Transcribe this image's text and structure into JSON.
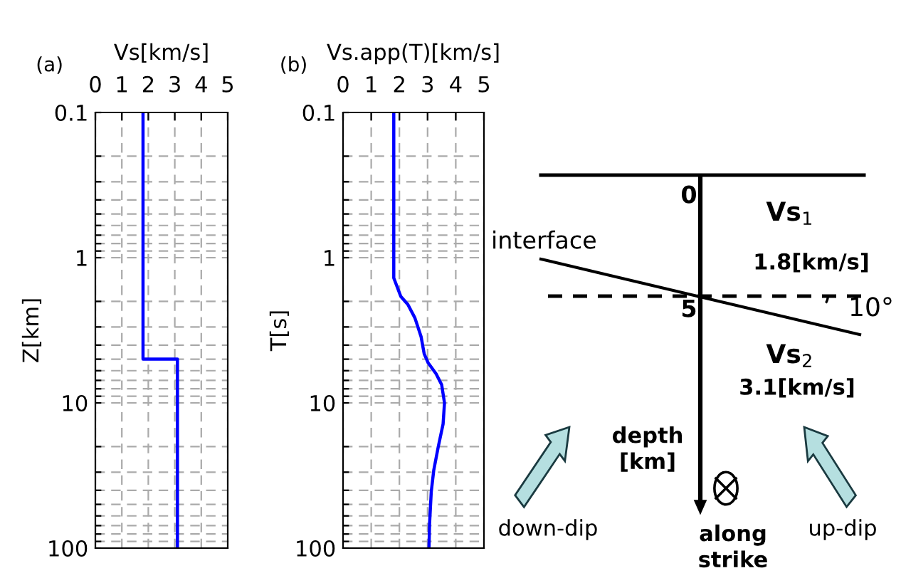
{
  "chart_data": [
    {
      "type": "line",
      "xlabel": "Vs[km/s]",
      "ylabel": "Z[km]",
      "annotations": [
        "(a)"
      ],
      "log": "y",
      "grid": true,
      "marker": "none",
      "line_style": "solid",
      "xlim": [
        0,
        5
      ],
      "xticks": [
        0,
        1,
        2,
        3,
        4,
        5
      ],
      "ylim": [
        100,
        0.1
      ],
      "yticks": [
        0.1,
        {
          "value": 0.2,
          "label": null
        },
        {
          "value": 0.3,
          "label": null
        },
        {
          "value": 0.4,
          "label": null
        },
        {
          "value": 0.5,
          "label": null
        },
        {
          "value": 0.6,
          "label": null
        },
        {
          "value": 0.7,
          "label": null
        },
        {
          "value": 0.8,
          "label": null
        },
        {
          "value": 0.9,
          "label": null
        },
        1,
        {
          "value": 2,
          "label": null
        },
        {
          "value": 3,
          "label": null
        },
        {
          "value": 4,
          "label": null
        },
        {
          "value": 5,
          "label": null
        },
        {
          "value": 6,
          "label": null
        },
        {
          "value": 7,
          "label": null
        },
        {
          "value": 8,
          "label": null
        },
        {
          "value": 9,
          "label": null
        },
        10,
        {
          "value": 20,
          "label": null
        },
        {
          "value": 30,
          "label": null
        },
        {
          "value": 40,
          "label": null
        },
        {
          "value": 50,
          "label": null
        },
        {
          "value": 60,
          "label": null
        },
        {
          "value": 70,
          "label": null
        },
        {
          "value": 80,
          "label": null
        },
        {
          "value": 90,
          "label": null
        },
        100
      ],
      "series": [
        {
          "color": "#0000ff",
          "x": [
            1.8,
            1.8,
            3.1,
            3.1
          ],
          "values": [
            0.1,
            5,
            5,
            100
          ]
        }
      ]
    },
    {
      "type": "line",
      "xlabel": "Vs.app(T)[km/s]",
      "ylabel": "T[s]",
      "annotations": [
        "(b)"
      ],
      "log": "y",
      "grid": true,
      "marker": "none",
      "line_style": "solid",
      "xlim": [
        0,
        5
      ],
      "xticks": [
        0,
        1,
        2,
        3,
        4,
        5
      ],
      "ylim": [
        100,
        0.1
      ],
      "yticks": [
        0.1,
        {
          "value": 0.2,
          "label": null
        },
        {
          "value": 0.3,
          "label": null
        },
        {
          "value": 0.4,
          "label": null
        },
        {
          "value": 0.5,
          "label": null
        },
        {
          "value": 0.6,
          "label": null
        },
        {
          "value": 0.7,
          "label": null
        },
        {
          "value": 0.8,
          "label": null
        },
        {
          "value": 0.9,
          "label": null
        },
        1,
        {
          "value": 2,
          "label": null
        },
        {
          "value": 3,
          "label": null
        },
        {
          "value": 4,
          "label": null
        },
        {
          "value": 5,
          "label": null
        },
        {
          "value": 6,
          "label": null
        },
        {
          "value": 7,
          "label": null
        },
        {
          "value": 8,
          "label": null
        },
        {
          "value": 9,
          "label": null
        },
        10,
        {
          "value": 20,
          "label": null
        },
        {
          "value": 30,
          "label": null
        },
        {
          "value": 40,
          "label": null
        },
        {
          "value": 50,
          "label": null
        },
        {
          "value": 60,
          "label": null
        },
        {
          "value": 70,
          "label": null
        },
        {
          "value": 80,
          "label": null
        },
        {
          "value": 90,
          "label": null
        },
        100
      ],
      "series": [
        {
          "color": "#0000ff",
          "x": [
            1.8,
            1.8,
            1.8,
            2.05,
            2.3,
            2.55,
            2.77,
            2.88,
            3.02,
            3.3,
            3.5,
            3.6,
            3.55,
            3.38,
            3.22,
            3.13,
            3.07,
            3.05
          ],
          "values": [
            0.1,
            1,
            1.38,
            1.85,
            2.1,
            2.6,
            3.5,
            4.6,
            5.3,
            6.3,
            7.5,
            10,
            14,
            20,
            29,
            41,
            68,
            100
          ]
        }
      ]
    },
    {
      "type": "other",
      "annotations": [
        "0",
        "5",
        "interface",
        "Vs$_{1}$",
        "1.8[km/s]",
        "10°",
        "Vs$_{2}$",
        "3.1[km/s]",
        "depth\n[km]",
        "down-dip",
        "along\nstrike",
        "up-dip"
      ]
    }
  ]
}
